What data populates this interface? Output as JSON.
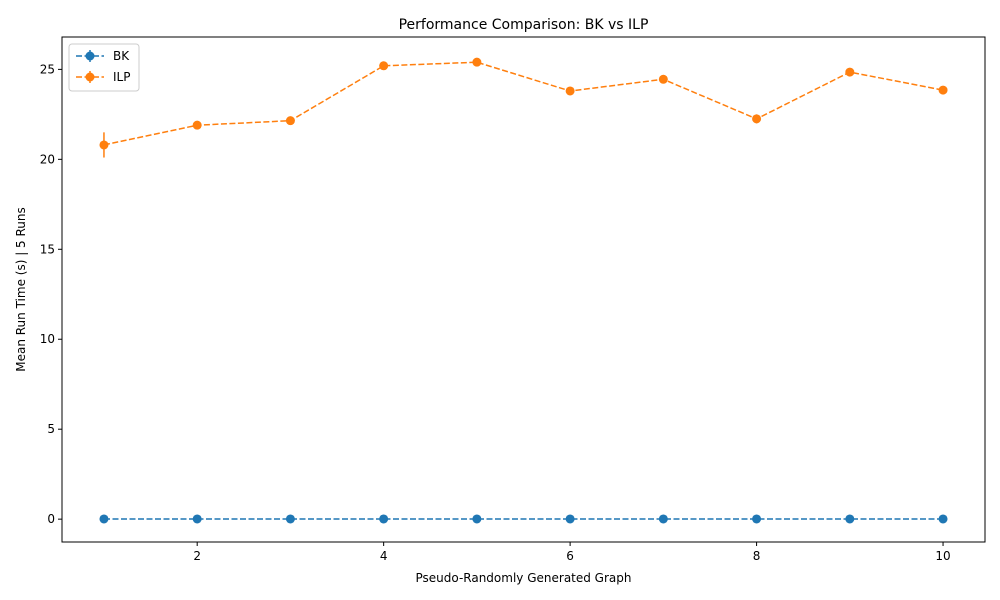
{
  "chart_data": {
    "type": "line",
    "title": "Performance Comparison: BK vs ILP",
    "xlabel": "Pseudo-Randomly Generated Graph",
    "ylabel": "Mean Run Time (s) | 5 Runs",
    "xlim": [
      0.55,
      10.45
    ],
    "ylim": [
      -1.27,
      26.8
    ],
    "xticks": [
      2,
      4,
      6,
      8,
      10
    ],
    "xtick_labels": [
      "2",
      "4",
      "6",
      "8",
      "10"
    ],
    "yticks": [
      0,
      5,
      10,
      15,
      20,
      25
    ],
    "ytick_labels": [
      "0",
      "5",
      "10",
      "15",
      "20",
      "25"
    ],
    "grid": false,
    "legend": "top-left",
    "x": [
      1,
      2,
      3,
      4,
      5,
      6,
      7,
      8,
      9,
      10
    ],
    "series": [
      {
        "name": "BK",
        "color": "#1f77b4",
        "linestyle": "dashed",
        "marker": "circle",
        "values": [
          0.01,
          0.01,
          0.01,
          0.01,
          0.01,
          0.01,
          0.01,
          0.01,
          0.01,
          0.01
        ],
        "errors": [
          0,
          0,
          0,
          0,
          0,
          0,
          0,
          0,
          0,
          0
        ]
      },
      {
        "name": "ILP",
        "color": "#ff7f0e",
        "linestyle": "dashed",
        "marker": "circle",
        "values": [
          20.8,
          21.9,
          22.15,
          25.2,
          25.4,
          23.8,
          24.45,
          22.25,
          24.85,
          23.85
        ],
        "errors": [
          0.7,
          0.1,
          0.1,
          0.1,
          0.1,
          0.1,
          0.1,
          0.25,
          0.1,
          0.1
        ]
      }
    ]
  }
}
